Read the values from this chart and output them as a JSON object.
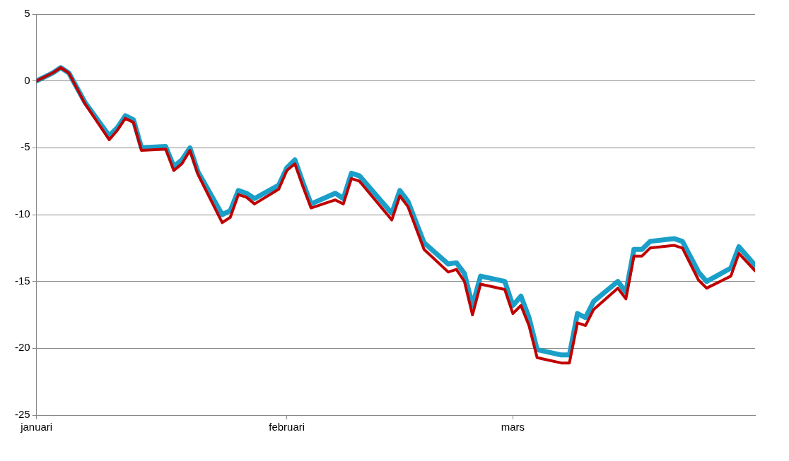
{
  "chart_data": {
    "type": "line",
    "x": [
      "--01-01",
      "--01-03",
      "--01-04",
      "--01-05",
      "--01-07",
      "--01-10",
      "--01-11",
      "--01-12",
      "--01-13",
      "--01-14",
      "--01-17",
      "--01-18",
      "--01-19",
      "--01-20",
      "--01-21",
      "--01-24",
      "--01-25",
      "--01-26",
      "--01-27",
      "--01-28",
      "--01-31",
      "--02-01",
      "--02-02",
      "--02-03",
      "--02-04",
      "--02-07",
      "--02-08",
      "--02-09",
      "--02-10",
      "--02-14",
      "--02-15",
      "--02-16",
      "--02-18",
      "--02-21",
      "--02-22",
      "--02-23",
      "--02-24",
      "--02-25",
      "--02-28",
      "--03-01",
      "--03-02",
      "--03-03",
      "--03-04",
      "--03-07",
      "--03-08",
      "--03-09",
      "--03-10",
      "--03-11",
      "--03-14",
      "--03-15",
      "--03-16",
      "--03-17",
      "--03-18",
      "--03-21",
      "--03-22",
      "--03-24",
      "--03-25",
      "--03-28",
      "--03-29",
      "--03-31"
    ],
    "series": [
      {
        "color": "#1a9fc9",
        "values": [
          0,
          0.6,
          1.0,
          0.6,
          -1.6,
          -4.1,
          -3.5,
          -2.6,
          -2.9,
          -5.0,
          -4.9,
          -6.4,
          -5.9,
          -5.0,
          -6.8,
          -10.0,
          -9.7,
          -8.2,
          -8.4,
          -8.8,
          -7.8,
          -6.5,
          -5.9,
          -7.6,
          -9.2,
          -8.4,
          -8.8,
          -6.9,
          -7.1,
          -9.9,
          -8.2,
          -9.0,
          -12.1,
          -13.7,
          -13.6,
          -14.4,
          -16.8,
          -14.6,
          -15.0,
          -16.8,
          -16.1,
          -17.7,
          -20.1,
          -20.5,
          -20.5,
          -17.4,
          -17.7,
          -16.5,
          -15.0,
          -15.8,
          -12.6,
          -12.6,
          -12.0,
          -11.8,
          -12.0,
          -14.3,
          -15.0,
          -14.0,
          -12.4,
          -13.8
        ]
      },
      {
        "color": "#c00000",
        "values": [
          0,
          0.6,
          1.0,
          0.6,
          -1.7,
          -4.4,
          -3.7,
          -2.8,
          -3.1,
          -5.2,
          -5.1,
          -6.7,
          -6.2,
          -5.2,
          -7.0,
          -10.6,
          -10.2,
          -8.5,
          -8.7,
          -9.2,
          -8.1,
          -6.7,
          -6.2,
          -7.9,
          -9.5,
          -8.9,
          -9.2,
          -7.3,
          -7.5,
          -10.4,
          -8.6,
          -9.4,
          -12.6,
          -14.3,
          -14.1,
          -15.0,
          -17.5,
          -15.2,
          -15.6,
          -17.4,
          -16.8,
          -18.3,
          -20.7,
          -21.1,
          -21.1,
          -18.1,
          -18.3,
          -17.1,
          -15.5,
          -16.3,
          -13.1,
          -13.1,
          -12.5,
          -12.3,
          -12.5,
          -14.9,
          -15.5,
          -14.6,
          -12.9,
          -14.2
        ]
      }
    ],
    "xlim": [
      "--01-01",
      "--03-31"
    ],
    "xticks": [
      {
        "value": "--01-01",
        "label": "januari"
      },
      {
        "value": "--02-01",
        "label": "februari"
      },
      {
        "value": "--03-01",
        "label": "mars"
      }
    ],
    "ylim": [
      -25,
      5
    ],
    "yticks": [
      -25,
      -20,
      -15,
      -10,
      -5,
      0,
      5
    ],
    "grid": "y",
    "legend": false,
    "marker": "none",
    "line_style": "solid"
  }
}
